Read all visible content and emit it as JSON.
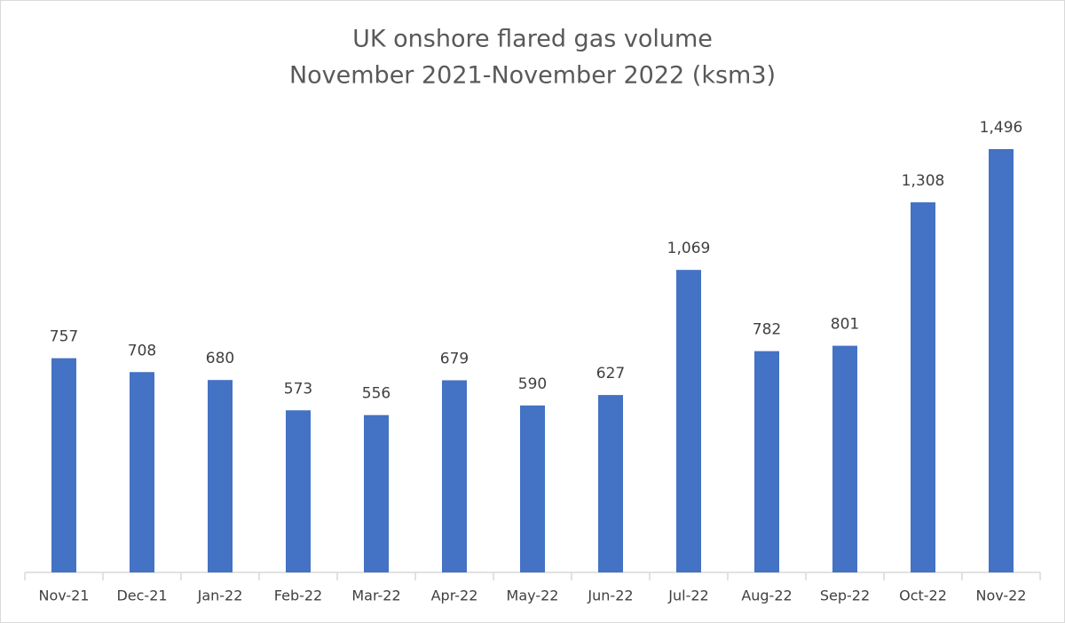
{
  "chart_data": {
    "type": "bar",
    "title": "UK onshore flared gas volume",
    "subtitle": "November 2021-November 2022 (ksm3)",
    "categories": [
      "Nov-21",
      "Dec-21",
      "Jan-22",
      "Feb-22",
      "Mar-22",
      "Apr-22",
      "May-22",
      "Jun-22",
      "Jul-22",
      "Aug-22",
      "Sep-22",
      "Oct-22",
      "Nov-22"
    ],
    "values": [
      757,
      708,
      680,
      573,
      556,
      679,
      590,
      627,
      1069,
      782,
      801,
      1308,
      1496
    ],
    "value_labels": [
      "757",
      "708",
      "680",
      "573",
      "556",
      "679",
      "590",
      "627",
      "1,069",
      "782",
      "801",
      "1,308",
      "1,496"
    ],
    "color": "#4472c4"
  }
}
